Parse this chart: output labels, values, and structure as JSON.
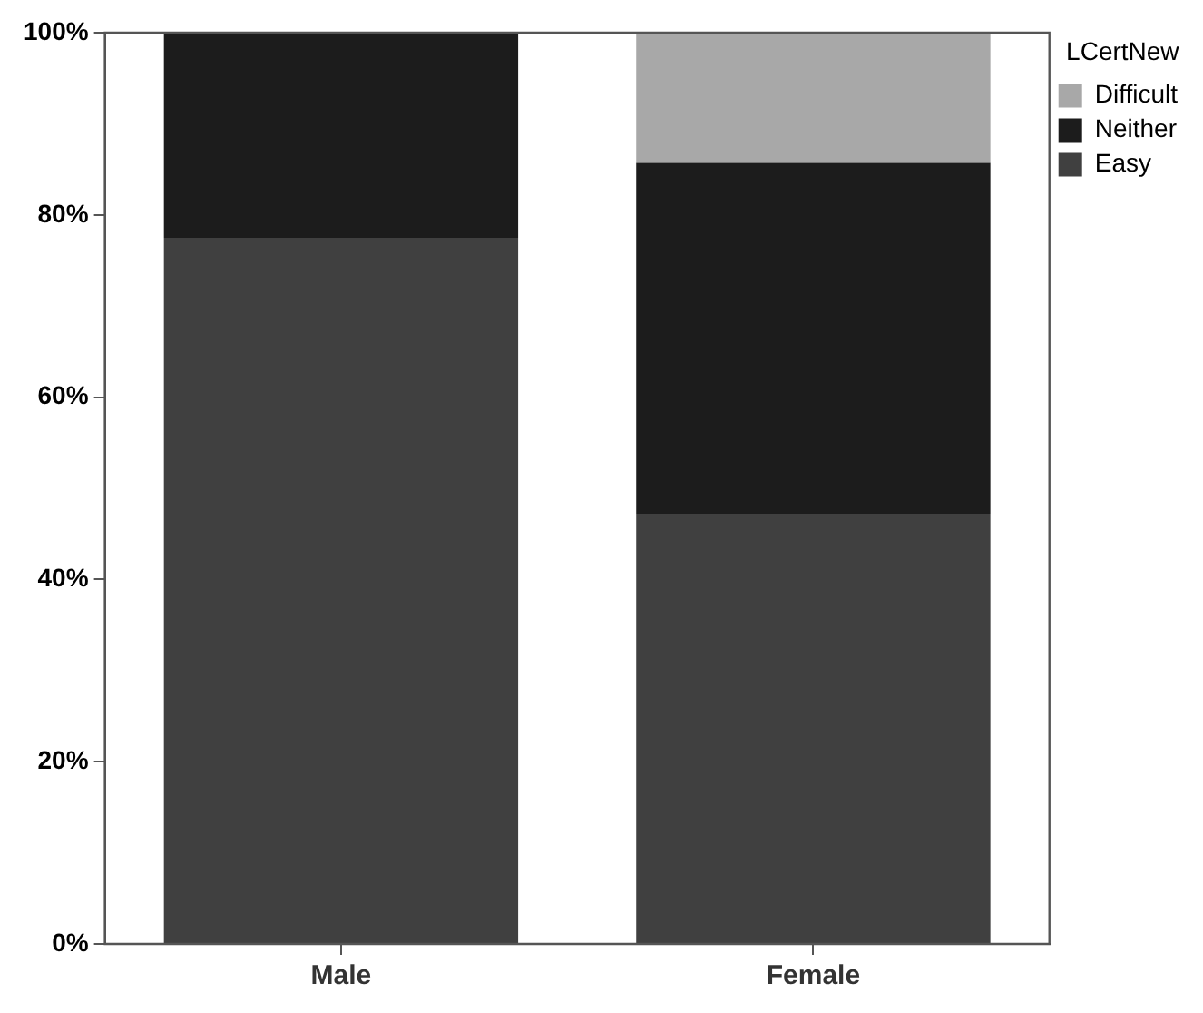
{
  "chart_data": {
    "type": "bar",
    "stacked": true,
    "legend_title": "LCertNew",
    "legend": "top right",
    "grid": false,
    "categories": [
      "Male",
      "Female"
    ],
    "ylim": [
      0,
      100
    ],
    "yticks": [
      {
        "value": 0,
        "label": "0%"
      },
      {
        "value": 20,
        "label": "20%"
      },
      {
        "value": 40,
        "label": "40%"
      },
      {
        "value": 60,
        "label": "60%"
      },
      {
        "value": 80,
        "label": "80%"
      },
      {
        "value": 100,
        "label": "100%"
      }
    ],
    "series": [
      {
        "name": "Easy",
        "color": "#404040",
        "values": [
          77.5,
          47.2
        ]
      },
      {
        "name": "Neither",
        "color": "#1c1c1c",
        "values": [
          22.5,
          38.5
        ]
      },
      {
        "name": "Difficult",
        "color": "#a8a8a8",
        "values": [
          0,
          14.3
        ]
      }
    ]
  }
}
